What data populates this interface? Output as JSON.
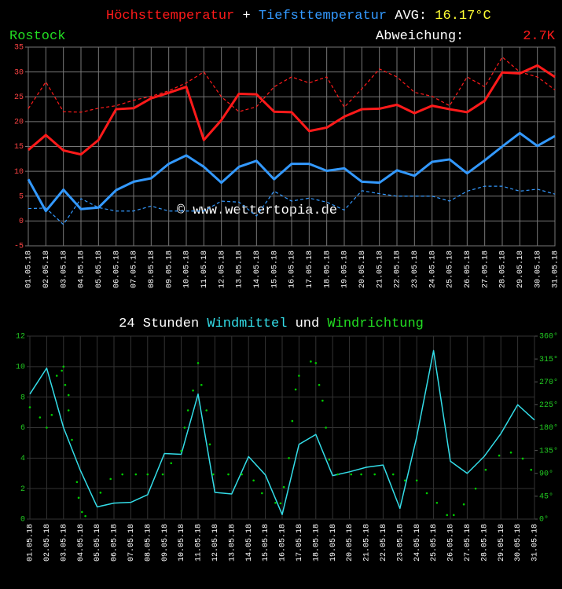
{
  "chart_data": [
    {
      "type": "line",
      "location": "Rostock",
      "separator": "+",
      "avg_label": "AVG:",
      "avg_value": "16.17°C",
      "deviation_label": "Abweichung:",
      "deviation_value": "2.7K",
      "watermark": "© www.wettertopia.de",
      "categories": [
        "01.05.18",
        "02.05.18",
        "03.05.18",
        "04.05.18",
        "05.05.18",
        "06.05.18",
        "07.05.18",
        "08.05.18",
        "09.05.18",
        "10.05.18",
        "11.05.18",
        "12.05.18",
        "13.05.18",
        "14.05.18",
        "15.05.18",
        "16.05.18",
        "17.05.18",
        "18.05.18",
        "19.05.18",
        "20.05.18",
        "21.05.18",
        "22.05.18",
        "23.05.18",
        "24.05.18",
        "25.05.18",
        "26.05.18",
        "27.05.18",
        "28.05.18",
        "29.05.18",
        "30.05.18",
        "31.05.18"
      ],
      "ylim": [
        -5,
        35
      ],
      "yticks": [
        -5,
        0,
        5,
        10,
        15,
        20,
        25,
        30,
        35
      ],
      "grid": true,
      "series": [
        {
          "name": "Höchsttemperatur",
          "color": "#ff1a1a",
          "style": "solid",
          "values": [
            14.3,
            17.3,
            14.2,
            13.4,
            16.3,
            22.5,
            22.7,
            24.7,
            25.8,
            27,
            16.3,
            20.3,
            25.6,
            25.5,
            22,
            21.9,
            18.1,
            18.8,
            21,
            22.5,
            22.6,
            23.4,
            21.7,
            23.2,
            22.5,
            21.9,
            24.2,
            29.9,
            29.7,
            31.3,
            29
          ]
        },
        {
          "color": "#ff1a1a",
          "style": "dashed",
          "values": [
            22.6,
            28,
            22,
            21.9,
            22.7,
            23.2,
            24.3,
            25.1,
            26.2,
            27.8,
            30,
            25,
            22,
            23,
            27,
            29,
            27.8,
            29,
            22.9,
            26.6,
            30.6,
            29,
            25.9,
            25.1,
            23.2,
            29,
            27,
            33,
            30,
            29,
            26.4
          ]
        },
        {
          "name": "Tiefsttemperatur",
          "color": "#3399ff",
          "style": "solid",
          "values": [
            8.4,
            2,
            6.3,
            2.4,
            2.7,
            6.2,
            7.9,
            8.6,
            11.5,
            13.2,
            10.9,
            7.7,
            10.9,
            12.1,
            8.4,
            11.5,
            11.5,
            10.1,
            10.6,
            7.9,
            7.7,
            10.2,
            9.1,
            11.9,
            12.4,
            9.6,
            12.2,
            15,
            17.7,
            15.1,
            17.1
          ]
        },
        {
          "color": "#3399ff",
          "style": "dashed",
          "values": [
            2.5,
            2.6,
            -0.7,
            4.5,
            2.7,
            2,
            2,
            3,
            2,
            2,
            2,
            4,
            3.8,
            1,
            6,
            4,
            4.6,
            3.8,
            2.2,
            6.1,
            5.5,
            5,
            5,
            5,
            4,
            6,
            7,
            7,
            6,
            6.4,
            5.4
          ]
        }
      ]
    },
    {
      "type": "line",
      "title_prefix": "24 Stunden",
      "title_joiner": "und",
      "categories": [
        "01.05.18",
        "02.05.18",
        "03.05.18",
        "04.05.18",
        "05.05.18",
        "06.05.18",
        "07.05.18",
        "08.05.18",
        "09.05.18",
        "10.05.18",
        "11.05.18",
        "12.05.18",
        "13.05.18",
        "14.05.18",
        "15.05.18",
        "16.05.18",
        "17.05.18",
        "18.05.18",
        "19.05.18",
        "20.05.18",
        "21.05.18",
        "22.05.18",
        "23.05.18",
        "24.05.18",
        "25.05.18",
        "26.05.18",
        "27.05.18",
        "28.05.18",
        "29.05.18",
        "30.05.18",
        "31.05.18"
      ],
      "xlim": [
        1,
        31
      ],
      "ylim": [
        0,
        12
      ],
      "yticks": [
        0,
        2,
        4,
        6,
        8,
        10,
        12
      ],
      "y2lim": [
        0,
        360
      ],
      "y2ticks": [
        {
          "value": 0,
          "label": "0°"
        },
        {
          "value": 45,
          "label": "45°"
        },
        {
          "value": 90,
          "label": "90°"
        },
        {
          "value": 135,
          "label": "135°"
        },
        {
          "value": 180,
          "label": "180°"
        },
        {
          "value": 225,
          "label": "225°"
        },
        {
          "value": 270,
          "label": "270°"
        },
        {
          "value": 315,
          "label": "315°"
        },
        {
          "value": 360,
          "label": "360°"
        }
      ],
      "grid": true,
      "series": [
        {
          "name": "Windmittel",
          "color": "#33dde8",
          "style": "solid",
          "values": [
            8.2,
            9.9,
            6,
            3.2,
            0.8,
            1.05,
            1.1,
            1.6,
            4.3,
            4.25,
            8.2,
            1.75,
            1.65,
            4.1,
            2.9,
            0.3,
            4.9,
            5.55,
            2.85,
            3.1,
            3.4,
            3.55,
            0.7,
            5.4,
            11.05,
            3.8,
            3,
            4.1,
            5.6,
            7.5,
            6.5
          ]
        },
        {
          "name": "Windrichtung",
          "color": "#00cc00",
          "style": "dots",
          "axis": "y2",
          "x": [
            1.0,
            1.6,
            2.0,
            2.3,
            2.6,
            2.9,
            3.0,
            3.1,
            3.3,
            3.3,
            3.5,
            3.8,
            3.9,
            4.1,
            4.3,
            5.2,
            5.8,
            6.5,
            7.3,
            8.0,
            8.9,
            9.4,
            10.0,
            10.2,
            10.4,
            10.7,
            11.0,
            11.2,
            11.5,
            11.7,
            11.9,
            12.8,
            13.6,
            14.3,
            14.8,
            15.6,
            15.9,
            16.1,
            16.4,
            16.6,
            16.8,
            17.0,
            17.7,
            18.0,
            18.2,
            18.4,
            18.6,
            18.8,
            19.3,
            20.1,
            20.7,
            21.5,
            22.6,
            23.3,
            24.0,
            24.6,
            25.2,
            25.8,
            26.2,
            26.8,
            27.5,
            28.1,
            28.9,
            29.6,
            30.3,
            30.8
          ],
          "values": [
            220,
            200,
            180,
            205,
            282,
            292,
            300,
            264,
            244,
            214,
            156,
            73,
            42,
            14,
            6,
            52,
            79,
            88,
            88,
            88,
            88,
            110,
            134,
            180,
            214,
            253,
            307,
            264,
            214,
            147,
            88,
            88,
            88,
            76,
            51,
            32,
            31,
            63,
            120,
            193,
            255,
            282,
            310,
            307,
            264,
            233,
            180,
            117,
            88,
            88,
            88,
            88,
            88,
            76,
            76,
            51,
            32,
            8,
            8,
            29,
            60,
            97,
            125,
            131,
            119,
            97
          ]
        }
      ]
    }
  ]
}
